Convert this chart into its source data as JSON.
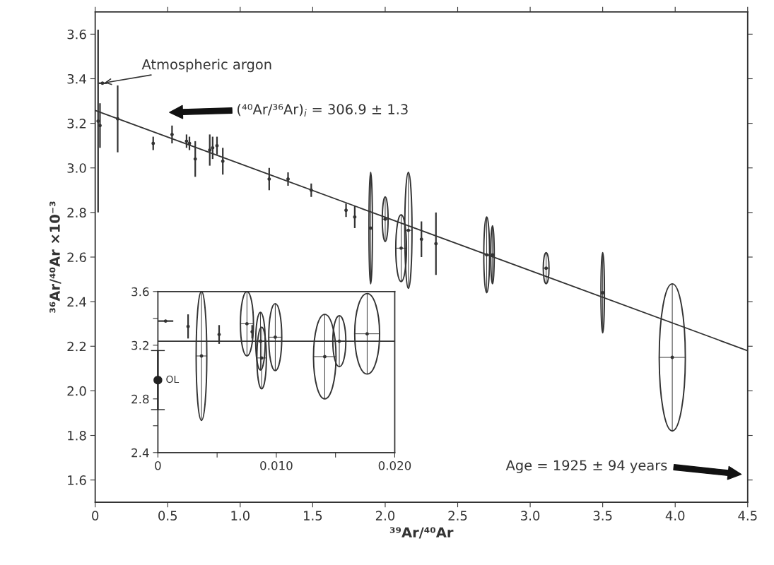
{
  "chart_data": [
    {
      "type": "scatter",
      "xlabel": "³⁹Ar/⁴⁰Ar",
      "ylabel": "³⁶Ar/⁴⁰Ar ×10⁻³",
      "xlim": [
        0,
        4.5
      ],
      "ylim": [
        1.5,
        3.7
      ],
      "xticks": [
        0,
        0.5,
        {
          "value": 1,
          "label": "1.0"
        },
        1.5,
        {
          "value": 2,
          "label": "2.0"
        },
        2.5,
        {
          "value": 3,
          "label": "3.0"
        },
        3.5,
        {
          "value": 4,
          "label": "4.0"
        },
        4.5
      ],
      "yticks": [
        1.6,
        1.8,
        {
          "value": 2,
          "label": "2.0"
        },
        2.2,
        2.4,
        2.6,
        2.8,
        {
          "value": 3,
          "label": "3.0"
        },
        3.2,
        3.4,
        3.6
      ],
      "marker": "circle",
      "grid": false,
      "legend": false,
      "series": [
        {
          "type": "scatter",
          "color": "#333333",
          "x": [
            0.02,
            0.033,
            0.155,
            0.4,
            0.53,
            0.63,
            0.65,
            0.69,
            0.79,
            0.81,
            0.84,
            0.88,
            1.2,
            1.33,
            1.49,
            1.73,
            1.79,
            1.9,
            2.0,
            2.11,
            2.16,
            2.25,
            2.35,
            2.7,
            2.74,
            3.11,
            3.5,
            3.98
          ],
          "values": [
            3.21,
            3.19,
            3.22,
            3.11,
            3.15,
            3.12,
            3.11,
            3.04,
            3.08,
            3.09,
            3.1,
            3.03,
            2.95,
            2.95,
            2.9,
            2.81,
            2.78,
            2.73,
            2.77,
            2.64,
            2.72,
            2.68,
            2.66,
            2.61,
            2.61,
            2.55,
            2.44,
            2.15
          ],
          "errors": [
            0.41,
            0.1,
            0.15,
            0.03,
            0.04,
            0.03,
            0.03,
            0.08,
            0.07,
            0.05,
            0.04,
            0.06,
            0.05,
            0.03,
            0.03,
            0.03,
            0.05,
            0.25,
            0.1,
            0.15,
            0.26,
            0.08,
            0.14,
            0.17,
            0.13,
            0.07,
            0.18,
            0.33
          ],
          "xerrors": [
            null,
            null,
            null,
            null,
            null,
            null,
            null,
            null,
            null,
            null,
            null,
            null,
            null,
            null,
            null,
            null,
            null,
            0.012,
            0.02,
            0.037,
            0.025,
            null,
            null,
            0.02,
            0.012,
            0.02,
            0.012,
            0.09
          ]
        },
        {
          "type": "line",
          "color": "#333333",
          "marker": "none",
          "x": [
            0,
            4.5
          ],
          "values": [
            3.258,
            2.18
          ]
        },
        {
          "type": "scatter",
          "color": "#333333",
          "x": [
            0.05
          ],
          "values": [
            3.38
          ],
          "xerrors": [
            0.03
          ]
        }
      ],
      "annotations": [
        {
          "text": "Atmospheric argon",
          "x": 0.05,
          "y": 3.38
        },
        "(⁴⁰Ar/³⁶Ar)$_{i}$ = 306.9 ± 1.3",
        "Age = 1925 ± 94 years"
      ]
    },
    {
      "type": "scatter",
      "xlim": [
        0,
        0.02
      ],
      "ylim": [
        2.4,
        3.6
      ],
      "xticks": [
        0,
        {
          "value": 0.005,
          "label": null
        },
        {
          "value": 0.01,
          "label": "0.010"
        },
        {
          "value": 0.015,
          "label": null
        },
        {
          "value": 0.02,
          "label": "0.020"
        }
      ],
      "yticks": [
        2.4,
        {
          "value": 2.6,
          "label": null
        },
        2.8,
        3.2,
        {
          "value": 3.4,
          "label": null
        },
        3.6
      ],
      "marker": "circle",
      "grid": false,
      "legend": false,
      "series": [
        {
          "type": "scatter",
          "color": "#333333",
          "x": [
            0.00255,
            0.00368,
            0.00517,
            0.00752,
            0.00796,
            0.00866,
            0.00876,
            0.00991,
            0.01409,
            0.01532,
            0.01767
          ],
          "values": [
            3.34,
            3.12,
            3.28,
            3.36,
            3.3,
            3.23,
            3.105,
            3.26,
            3.115,
            3.23,
            3.285
          ],
          "errors": [
            0.09,
            0.48,
            0.07,
            0.24,
            0.05,
            0.215,
            0.23,
            0.25,
            0.315,
            0.19,
            0.3
          ],
          "xerrors": [
            null,
            0.00045,
            null,
            0.00055,
            null,
            0.0004,
            0.0004,
            0.00055,
            0.00095,
            0.00055,
            0.00105
          ]
        },
        {
          "type": "line",
          "color": "#333333",
          "marker": "none",
          "x": [
            0,
            0.02
          ],
          "values": [
            3.23,
            3.23
          ]
        },
        {
          "type": "scatter",
          "color": "#333333",
          "x": [
            0.00065
          ],
          "values": [
            3.38
          ],
          "xerrors": [
            0.00065
          ]
        },
        {
          "type": "scatter",
          "color": "#222222",
          "marker": "circle",
          "x": [
            0
          ],
          "values": [
            2.94
          ],
          "errors": [
            0.22
          ]
        }
      ],
      "annotations": [
        {
          "text": "OL",
          "x": 0,
          "y": 2.94
        }
      ]
    }
  ]
}
